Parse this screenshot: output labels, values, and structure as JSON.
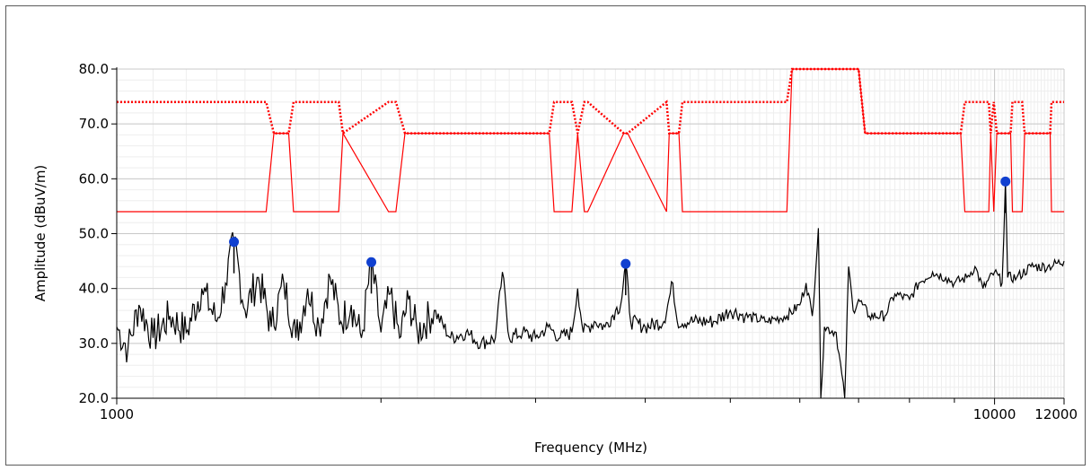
{
  "chart_data": {
    "type": "line",
    "title": "",
    "xlabel": "Frequency (MHz)",
    "ylabel": "Amplitude (dBuV/m)",
    "x_scale": "log",
    "xlim": [
      1000,
      12000
    ],
    "ylim": [
      20,
      80
    ],
    "x_tick_labels": [
      {
        "value": 1000,
        "label": "1000"
      },
      {
        "value": 10000,
        "label": "10000"
      },
      {
        "value": 12000,
        "label": "12000"
      }
    ],
    "x_minor_ticks": [
      2000,
      3000,
      4000,
      5000,
      6000,
      7000,
      8000,
      9000
    ],
    "y_tick_labels": [
      {
        "value": 20,
        "label": "20.0"
      },
      {
        "value": 30,
        "label": "30.0"
      },
      {
        "value": 40,
        "label": "40.0"
      },
      {
        "value": 50,
        "label": "50.0"
      },
      {
        "value": 60,
        "label": "60.0"
      },
      {
        "value": 70,
        "label": "70.0"
      },
      {
        "value": 80,
        "label": "80.0"
      }
    ],
    "grid": true,
    "colors": {
      "trace": "#000000",
      "peak_limit": "#ff0000",
      "avg_limit": "#ff0000",
      "markers": "#1040d0",
      "grid": "#c8c8c8",
      "minor_grid": "#eeeeee"
    },
    "series": [
      {
        "kind": "limit-dotted",
        "x": [
          1000,
          1480,
          1510,
          1570,
          1590,
          1790,
          1810,
          2040,
          2080,
          2130,
          2170,
          3110,
          3150,
          3300,
          3350,
          3410,
          3440,
          3780,
          3820,
          4230,
          4260,
          4370,
          4410,
          5800,
          5880,
          7000,
          7120,
          7660,
          7750,
          9150,
          9250,
          9850,
          9900,
          9980,
          10060,
          10430,
          10480,
          10750,
          10820,
          11570,
          11610,
          12000
        ],
        "y": [
          74,
          74,
          68.3,
          68.3,
          74,
          74,
          68.3,
          74,
          74,
          68.3,
          68.3,
          68.3,
          74,
          74,
          68.3,
          74,
          74,
          68.3,
          68.3,
          74,
          68.3,
          68.3,
          74,
          74,
          80,
          80,
          68.3,
          68.3,
          68.3,
          68.3,
          74,
          74,
          68.3,
          74,
          68.3,
          68.3,
          74,
          74,
          68.3,
          68.3,
          74,
          74
        ]
      },
      {
        "kind": "limit-solid",
        "x": [
          1000,
          1480,
          1510,
          1570,
          1590,
          1790,
          1810,
          2040,
          2080,
          2130,
          2170,
          3110,
          3150,
          3300,
          3350,
          3410,
          3440,
          3780,
          3820,
          4230,
          4260,
          4370,
          4410,
          5800,
          5880,
          7000,
          7120,
          7660,
          7750,
          9150,
          9250,
          9850,
          9900,
          9980,
          10060,
          10430,
          10480,
          10750,
          10820,
          11570,
          11610,
          12000
        ],
        "y": [
          54,
          54,
          68.3,
          68.3,
          54,
          54,
          68.3,
          54,
          54,
          68.3,
          68.3,
          68.3,
          54,
          54,
          68.3,
          54,
          54,
          68.3,
          68.3,
          54,
          68.3,
          68.3,
          54,
          54,
          80,
          80,
          68.3,
          68.3,
          68.3,
          68.3,
          54,
          54,
          68.3,
          54,
          68.3,
          68.3,
          54,
          54,
          68.3,
          68.3,
          54,
          54
        ]
      }
    ],
    "trace": {
      "description_points": [
        [
          1000,
          33
        ],
        [
          1030,
          29
        ],
        [
          1060,
          37
        ],
        [
          1100,
          31
        ],
        [
          1150,
          35
        ],
        [
          1200,
          32
        ],
        [
          1250,
          40
        ],
        [
          1300,
          34
        ],
        [
          1330,
          41
        ],
        [
          1360,
          48.5
        ],
        [
          1400,
          36
        ],
        [
          1450,
          42
        ],
        [
          1500,
          33
        ],
        [
          1550,
          41
        ],
        [
          1600,
          31
        ],
        [
          1650,
          40
        ],
        [
          1700,
          33
        ],
        [
          1750,
          42
        ],
        [
          1800,
          34
        ],
        [
          1850,
          37
        ],
        [
          1900,
          31
        ],
        [
          1950,
          44.8
        ],
        [
          2000,
          32
        ],
        [
          2050,
          39
        ],
        [
          2100,
          31
        ],
        [
          2150,
          38
        ],
        [
          2200,
          32
        ],
        [
          2300,
          36
        ],
        [
          2400,
          31
        ],
        [
          2500,
          32
        ],
        [
          2600,
          30
        ],
        [
          2700,
          31
        ],
        [
          2750,
          43
        ],
        [
          2800,
          31
        ],
        [
          2900,
          32
        ],
        [
          3000,
          31
        ],
        [
          3100,
          33
        ],
        [
          3200,
          31
        ],
        [
          3300,
          32
        ],
        [
          3350,
          40
        ],
        [
          3400,
          32
        ],
        [
          3500,
          34
        ],
        [
          3600,
          33
        ],
        [
          3700,
          36
        ],
        [
          3750,
          37
        ],
        [
          3800,
          44.5
        ],
        [
          3850,
          34
        ],
        [
          4000,
          33
        ],
        [
          4200,
          34
        ],
        [
          4300,
          41
        ],
        [
          4350,
          34
        ],
        [
          4500,
          34
        ],
        [
          4800,
          34
        ],
        [
          5000,
          36
        ],
        [
          5200,
          35
        ],
        [
          5500,
          34
        ],
        [
          5800,
          35
        ],
        [
          6000,
          37
        ],
        [
          6100,
          41
        ],
        [
          6200,
          35
        ],
        [
          6300,
          51
        ],
        [
          6340,
          20
        ],
        [
          6400,
          33
        ],
        [
          6600,
          32
        ],
        [
          6750,
          20
        ],
        [
          6820,
          44
        ],
        [
          6900,
          36
        ],
        [
          7000,
          38
        ],
        [
          7200,
          35
        ],
        [
          7500,
          35
        ],
        [
          7700,
          39
        ],
        [
          8000,
          38
        ],
        [
          8200,
          41
        ],
        [
          8500,
          43
        ],
        [
          8800,
          42
        ],
        [
          9000,
          41
        ],
        [
          9300,
          42
        ],
        [
          9500,
          44
        ],
        [
          9700,
          40
        ],
        [
          10000,
          43
        ],
        [
          10200,
          41
        ],
        [
          10290,
          59.5
        ],
        [
          10350,
          42
        ],
        [
          10600,
          42
        ],
        [
          11000,
          44
        ],
        [
          11500,
          44
        ],
        [
          12000,
          45
        ]
      ]
    },
    "markers": [
      {
        "x": 1360,
        "y": 48.5
      },
      {
        "x": 1950,
        "y": 44.8
      },
      {
        "x": 3800,
        "y": 44.5
      },
      {
        "x": 10290,
        "y": 59.5
      }
    ]
  }
}
